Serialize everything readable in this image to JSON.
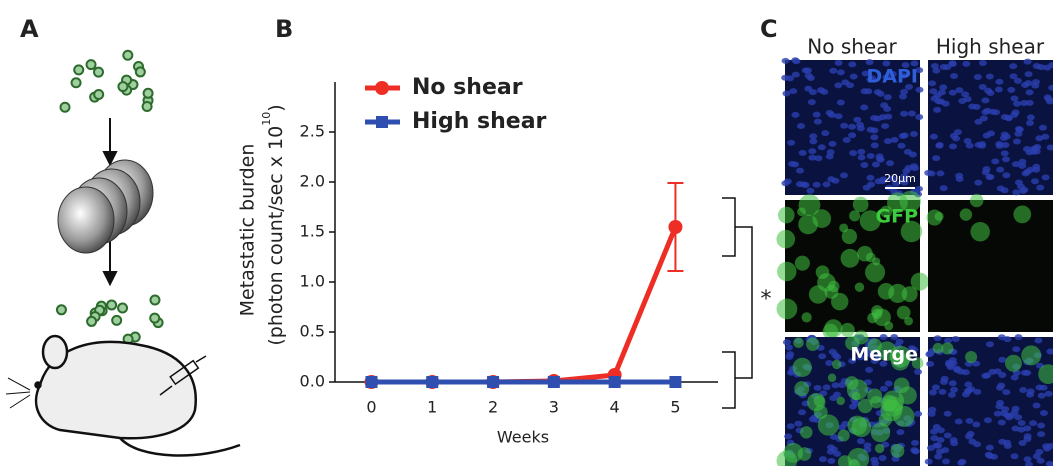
{
  "panels": {
    "a": "A",
    "b": "B",
    "c": "C"
  },
  "chart_data": {
    "type": "line",
    "ylabel_main": "Metastatic burden",
    "ylabel_unit": "(photon count/sec x 10",
    "ylabel_exp": "10",
    "ylabel_close": ")",
    "xlabel": "Weeks",
    "significance": "*",
    "x": [
      0,
      1,
      2,
      3,
      4,
      5
    ],
    "series": [
      {
        "name": "No shear",
        "color": "#ee2e24",
        "marker": "circle",
        "values": [
          0,
          0,
          0,
          0.01,
          0.07,
          1.55
        ],
        "errors": [
          null,
          null,
          null,
          null,
          null,
          0.44
        ]
      },
      {
        "name": "High shear",
        "color": "#2f4fb0",
        "marker": "square",
        "values": [
          0,
          0,
          0,
          0,
          0,
          0
        ],
        "errors": [
          null,
          null,
          null,
          null,
          null,
          null
        ]
      }
    ],
    "xlim": [
      -0.6,
      5.7
    ],
    "xticks": [
      0,
      1,
      2,
      3,
      4,
      5
    ],
    "ylim": [
      0,
      3
    ],
    "yticks": [
      {
        "value": 0,
        "label": "0.0"
      },
      0.5,
      {
        "value": 1,
        "label": "1.0"
      },
      1.5,
      {
        "value": 2,
        "label": "2.0"
      },
      2.5
    ]
  },
  "microscopy": {
    "columns": [
      "No shear",
      "High shear"
    ],
    "rows": [
      "DAPI",
      "GFP",
      "Merge"
    ],
    "scale_bar": "20μm"
  }
}
